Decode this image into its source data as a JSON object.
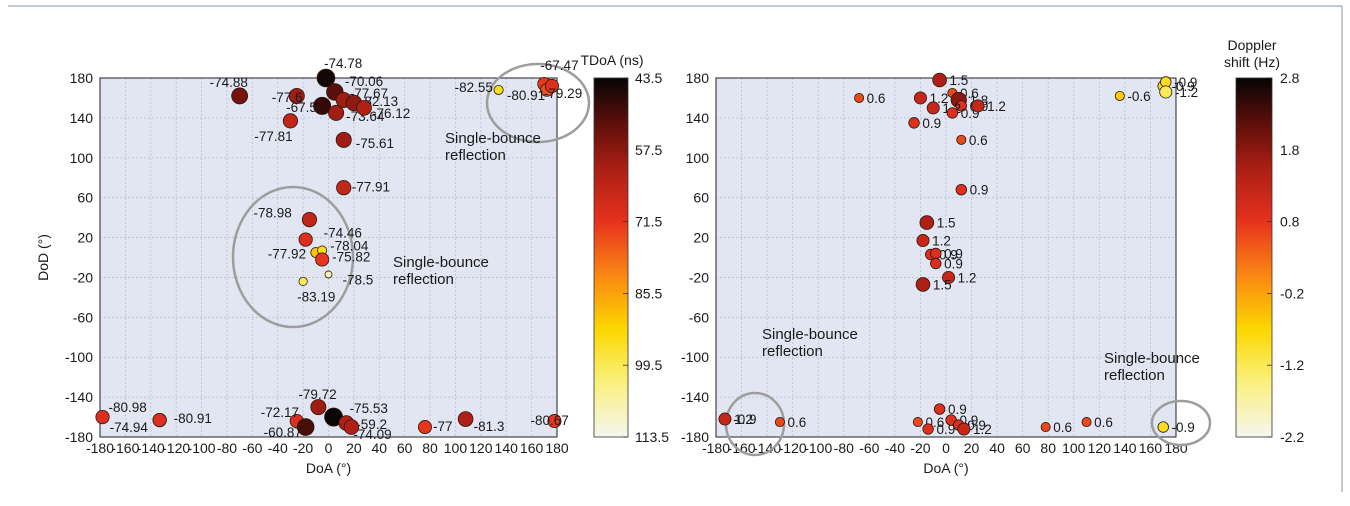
{
  "chart_data": [
    {
      "type": "scatter",
      "xlabel": "DoA (°)",
      "ylabel": "DoD (°)",
      "xlim": [
        -180,
        180
      ],
      "ylim": [
        -180,
        180
      ],
      "xticks": [
        "-180",
        "-160",
        "-140",
        "-120",
        "-100",
        "-80",
        "-60",
        "-40",
        "-20",
        "0",
        "20",
        "40",
        "60",
        "80",
        "100",
        "120",
        "140",
        "160",
        "180"
      ],
      "yticks": [
        "180",
        "140",
        "100",
        "60",
        "20",
        "-20",
        "-60",
        "-100",
        "-140",
        "-180"
      ],
      "grid": true,
      "colorbar": {
        "label": "TDoA (ns)",
        "ticks": [
          "43.5",
          "57.5",
          "71.5",
          "85.5",
          "99.5",
          "113.5"
        ],
        "range": [
          43.5,
          113.5
        ]
      },
      "annotations": [
        {
          "lines": [
            "Single-bounce",
            "reflection"
          ],
          "near": "top-right"
        },
        {
          "lines": [
            "Single-bounce",
            "reflection"
          ],
          "near": "center"
        }
      ],
      "points": [
        {
          "x": -178,
          "y": -160,
          "c": 70,
          "label": "-80.98"
        },
        {
          "x": -133,
          "y": -163,
          "c": 70,
          "label": "-74.94"
        },
        {
          "x": -133,
          "y": -163,
          "c": 70,
          "label": "-80.91"
        },
        {
          "x": -70,
          "y": 162,
          "c": 55,
          "label": "-74.88"
        },
        {
          "x": -25,
          "y": 162,
          "c": 60,
          "label": "-77.6"
        },
        {
          "x": -2,
          "y": 180,
          "c": 45,
          "label": "-74.78"
        },
        {
          "x": 5,
          "y": 166,
          "c": 52,
          "label": "-70.06"
        },
        {
          "x": 12,
          "y": 158,
          "c": 60,
          "label": "-77.67"
        },
        {
          "x": -5,
          "y": 152,
          "c": 48,
          "label": "-67.5"
        },
        {
          "x": 20,
          "y": 155,
          "c": 58,
          "label": "-82.13"
        },
        {
          "x": 6,
          "y": 145,
          "c": 60,
          "label": "-73.64"
        },
        {
          "x": -30,
          "y": 137,
          "c": 65,
          "label": "-77.81"
        },
        {
          "x": 28,
          "y": 150,
          "c": 62,
          "label": "-76.12"
        },
        {
          "x": 12,
          "y": 118,
          "c": 60,
          "label": "-75.61"
        },
        {
          "x": 12,
          "y": 70,
          "c": 65,
          "label": "-77.91"
        },
        {
          "x": -15,
          "y": 38,
          "c": 65,
          "label": "-78.98"
        },
        {
          "x": -18,
          "y": 18,
          "c": 70,
          "label": "-74.46"
        },
        {
          "x": -10,
          "y": 5,
          "c": 90,
          "label": "-77.92"
        },
        {
          "x": -5,
          "y": 7,
          "c": 95,
          "label": "-78.04"
        },
        {
          "x": -5,
          "y": -2,
          "c": 72,
          "label": "-75.82"
        },
        {
          "x": 0,
          "y": -17,
          "c": 108,
          "label": "-78.5"
        },
        {
          "x": -20,
          "y": -24,
          "c": 100,
          "label": "-83.19"
        },
        {
          "x": -25,
          "y": -164,
          "c": 70,
          "label": "-72.17"
        },
        {
          "x": -18,
          "y": -170,
          "c": 50,
          "label": "-60.87"
        },
        {
          "x": -8,
          "y": -150,
          "c": 60,
          "label": "-79.72"
        },
        {
          "x": 4,
          "y": -160,
          "c": 44,
          "label": "-75.53"
        },
        {
          "x": 14,
          "y": -166,
          "c": 62,
          "label": "-59.2"
        },
        {
          "x": 18,
          "y": -170,
          "c": 62,
          "label": "-74.09"
        },
        {
          "x": 76,
          "y": -170,
          "c": 72,
          "label": "-77"
        },
        {
          "x": 108,
          "y": -162,
          "c": 62,
          "label": "-81.3"
        },
        {
          "x": 134,
          "y": 168,
          "c": 95,
          "label": "-82.55"
        },
        {
          "x": 170,
          "y": 174,
          "c": 72,
          "label": "-67.47"
        },
        {
          "x": 172,
          "y": 168,
          "c": 75,
          "label": "-80.91"
        },
        {
          "x": 176,
          "y": 172,
          "c": 70,
          "label": "-79.29"
        },
        {
          "x": 178,
          "y": -164,
          "c": 72,
          "label": "-80.67"
        }
      ]
    },
    {
      "type": "scatter",
      "xlabel": "DoA (°)",
      "ylabel": "",
      "xlim": [
        -180,
        180
      ],
      "ylim": [
        -180,
        180
      ],
      "xticks": [
        "-180",
        "-160",
        "-140",
        "-120",
        "-100",
        "-80",
        "-60",
        "-40",
        "-20",
        "0",
        "20",
        "40",
        "60",
        "80",
        "100",
        "120",
        "140",
        "160",
        "180"
      ],
      "yticks": [
        "180",
        "140",
        "100",
        "60",
        "20",
        "-20",
        "-60",
        "-100",
        "-140",
        "-180"
      ],
      "grid": true,
      "colorbar": {
        "label": [
          "Doppler",
          "shift (Hz)"
        ],
        "ticks": [
          "2.8",
          "1.8",
          "0.8",
          "-0.2",
          "-1.2",
          "-2.2"
        ],
        "range": [
          -2.2,
          2.8
        ]
      },
      "annotations": [
        {
          "lines": [
            "Single-bounce",
            "reflection"
          ],
          "near": "bottom-left"
        },
        {
          "lines": [
            "Single-bounce",
            "reflection"
          ],
          "near": "bottom-right"
        }
      ],
      "points": [
        {
          "x": -173,
          "y": -162,
          "c": -0.9,
          "label": "-0.9"
        },
        {
          "x": -173,
          "y": -162,
          "c": 1.2,
          "label": "1.2"
        },
        {
          "x": -130,
          "y": -165,
          "c": 0.6,
          "label": "0.6"
        },
        {
          "x": -68,
          "y": 160,
          "c": 0.6,
          "label": "0.6"
        },
        {
          "x": -5,
          "y": 178,
          "c": 1.5,
          "label": "1.5"
        },
        {
          "x": 5,
          "y": 165,
          "c": 0.6,
          "label": "0.6"
        },
        {
          "x": -20,
          "y": 160,
          "c": 1.2,
          "label": "1.2"
        },
        {
          "x": 10,
          "y": 158,
          "c": 1.8,
          "label": "1.8"
        },
        {
          "x": 12,
          "y": 152,
          "c": 0.9,
          "label": "0.9"
        },
        {
          "x": -10,
          "y": 150,
          "c": 1.2,
          "label": "1.2"
        },
        {
          "x": 5,
          "y": 145,
          "c": 0.9,
          "label": "0.9"
        },
        {
          "x": 25,
          "y": 152,
          "c": 1.2,
          "label": "1.2"
        },
        {
          "x": -25,
          "y": 135,
          "c": 0.9,
          "label": "0.9"
        },
        {
          "x": 12,
          "y": 118,
          "c": 0.6,
          "label": "0.6"
        },
        {
          "x": 12,
          "y": 68,
          "c": 0.9,
          "label": "0.9"
        },
        {
          "x": -15,
          "y": 35,
          "c": 1.5,
          "label": "1.5"
        },
        {
          "x": -18,
          "y": 17,
          "c": 1.2,
          "label": "1.2"
        },
        {
          "x": -12,
          "y": 3,
          "c": 0.9,
          "label": "0.9"
        },
        {
          "x": -8,
          "y": 4,
          "c": 0.9,
          "label": "0.9"
        },
        {
          "x": -8,
          "y": -6,
          "c": 0.9,
          "label": "0.9"
        },
        {
          "x": 2,
          "y": -20,
          "c": 1.2,
          "label": "1.2"
        },
        {
          "x": -18,
          "y": -27,
          "c": 1.5,
          "label": "1.5"
        },
        {
          "x": -5,
          "y": -152,
          "c": 0.9,
          "label": "0.9"
        },
        {
          "x": -22,
          "y": -165,
          "c": 0.6,
          "label": "0.6"
        },
        {
          "x": -14,
          "y": -172,
          "c": 0.9,
          "label": "0.9"
        },
        {
          "x": 4,
          "y": -163,
          "c": 0.9,
          "label": "0.9"
        },
        {
          "x": 10,
          "y": -168,
          "c": 0.9,
          "label": "0.9"
        },
        {
          "x": 14,
          "y": -172,
          "c": 1.2,
          "label": "1.2"
        },
        {
          "x": 78,
          "y": -170,
          "c": 0.6,
          "label": "0.6"
        },
        {
          "x": 110,
          "y": -165,
          "c": 0.6,
          "label": "0.6"
        },
        {
          "x": 170,
          "y": -170,
          "c": -0.9,
          "label": "-0.9"
        },
        {
          "x": 136,
          "y": 162,
          "c": -0.6,
          "label": "-0.6"
        },
        {
          "x": 170,
          "y": 172,
          "c": -0.9,
          "label": "-0.9"
        },
        {
          "x": 172,
          "y": 176,
          "c": -0.9,
          "label": "-0.9"
        },
        {
          "x": 172,
          "y": 166,
          "c": -1.2,
          "label": "-1.2"
        }
      ]
    }
  ]
}
